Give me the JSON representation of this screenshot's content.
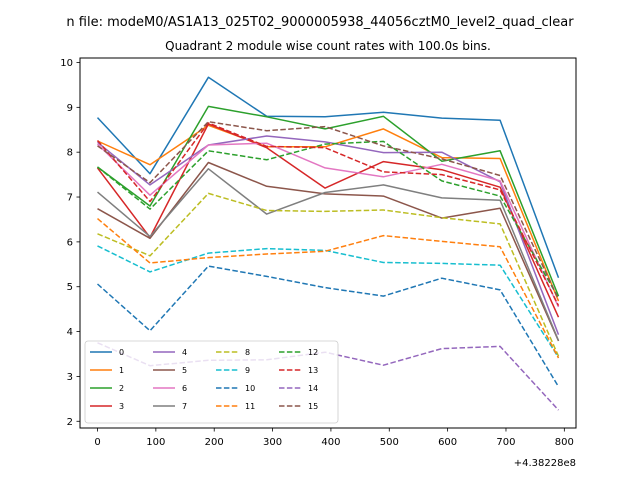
{
  "suptitle": "n file: modeM0/AS1A13_025T02_9000005938_44056cztM0_level2_quad_clear",
  "chart_data": {
    "type": "line",
    "title": "Quadrant 2 module wise count rates with 100.0s bins.",
    "xlabel": "",
    "ylabel": "",
    "x_offset_label": "+4.38228e8",
    "x": [
      0,
      90,
      190,
      290,
      390,
      490,
      590,
      690,
      790
    ],
    "xlim": [
      -30,
      820
    ],
    "ylim": [
      1.85,
      10.1
    ],
    "xticks": [
      0,
      100,
      200,
      300,
      400,
      500,
      600,
      700,
      800
    ],
    "xtick_labels": [
      "0",
      "100",
      "200",
      "300",
      "400",
      "500",
      "600",
      "700",
      "800"
    ],
    "yticks": [
      2,
      3,
      4,
      5,
      6,
      7,
      8,
      9,
      10
    ],
    "ytick_labels": [
      "2",
      "3",
      "4",
      "5",
      "6",
      "7",
      "8",
      "9",
      "10"
    ],
    "grid": false,
    "legend_position": "lower-left",
    "series": [
      {
        "name": "0",
        "color": "#1f77b4",
        "dash": "solid",
        "values": [
          8.77,
          7.52,
          9.67,
          8.8,
          8.79,
          8.89,
          8.76,
          8.71,
          5.2
        ]
      },
      {
        "name": "1",
        "color": "#ff7f0e",
        "dash": "solid",
        "values": [
          8.25,
          7.72,
          8.6,
          8.12,
          8.12,
          8.52,
          7.88,
          7.86,
          4.68
        ]
      },
      {
        "name": "2",
        "color": "#2ca02c",
        "dash": "solid",
        "values": [
          7.67,
          6.8,
          9.02,
          8.79,
          8.52,
          8.8,
          7.8,
          8.03,
          4.79
        ]
      },
      {
        "name": "3",
        "color": "#d62728",
        "dash": "solid",
        "values": [
          7.65,
          6.1,
          8.63,
          8.1,
          7.2,
          7.79,
          7.61,
          7.22,
          4.32
        ]
      },
      {
        "name": "4",
        "color": "#9467bd",
        "dash": "solid",
        "values": [
          8.22,
          7.27,
          8.16,
          8.36,
          8.23,
          7.99,
          8.0,
          7.34,
          3.93
        ]
      },
      {
        "name": "5",
        "color": "#8c564b",
        "dash": "solid",
        "values": [
          6.74,
          6.08,
          7.77,
          7.24,
          7.07,
          7.02,
          6.53,
          6.75,
          3.79
        ]
      },
      {
        "name": "6",
        "color": "#e377c2",
        "dash": "solid",
        "values": [
          8.18,
          7.04,
          8.16,
          8.2,
          7.65,
          7.45,
          7.73,
          7.36,
          4.55
        ]
      },
      {
        "name": "7",
        "color": "#7f7f7f",
        "dash": "solid",
        "values": [
          7.11,
          6.12,
          7.63,
          6.62,
          7.1,
          7.27,
          6.98,
          6.93,
          3.8
        ]
      },
      {
        "name": "8",
        "color": "#bcbd22",
        "dash": "dashed",
        "values": [
          6.18,
          5.69,
          7.08,
          6.7,
          6.68,
          6.71,
          6.54,
          6.4,
          3.45
        ]
      },
      {
        "name": "9",
        "color": "#17becf",
        "dash": "dashed",
        "values": [
          5.91,
          5.33,
          5.75,
          5.85,
          5.81,
          5.54,
          5.52,
          5.48,
          3.42
        ]
      },
      {
        "name": "10",
        "color": "#1f77b4",
        "dash": "dashed",
        "values": [
          5.06,
          4.02,
          5.46,
          5.23,
          4.98,
          4.79,
          5.19,
          4.93,
          2.77
        ]
      },
      {
        "name": "11",
        "color": "#ff7f0e",
        "dash": "dashed",
        "values": [
          6.52,
          5.53,
          5.65,
          5.73,
          5.79,
          6.14,
          6.01,
          5.89,
          3.41
        ]
      },
      {
        "name": "12",
        "color": "#2ca02c",
        "dash": "dashed",
        "values": [
          7.67,
          6.73,
          8.03,
          7.83,
          8.18,
          8.24,
          7.36,
          7.02,
          4.75
        ]
      },
      {
        "name": "13",
        "color": "#d62728",
        "dash": "dashed",
        "values": [
          8.26,
          6.9,
          8.65,
          8.13,
          8.1,
          7.56,
          7.5,
          7.16,
          4.58
        ]
      },
      {
        "name": "14",
        "color": "#9467bd",
        "dash": "dashed",
        "values": [
          3.75,
          3.24,
          3.36,
          3.37,
          3.54,
          3.25,
          3.62,
          3.67,
          2.25
        ]
      },
      {
        "name": "15",
        "color": "#8c564b",
        "dash": "dashed",
        "values": [
          8.14,
          7.32,
          8.68,
          8.48,
          8.57,
          8.14,
          7.85,
          7.48,
          4.72
        ]
      }
    ]
  }
}
